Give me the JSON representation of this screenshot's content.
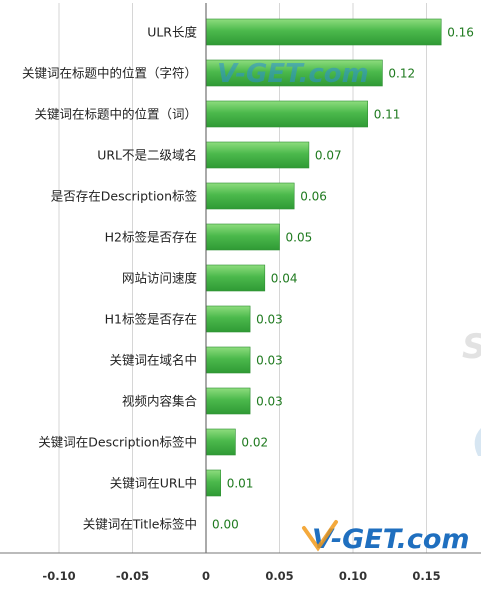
{
  "chart_data": {
    "type": "bar",
    "orientation": "horizontal",
    "categories": [
      "ULR长度",
      "关键词在标题中的位置（字符）",
      "关键词在标题中的位置（词）",
      "URL不是二级域名",
      "是否存在Description标签",
      "H2标签是否存在",
      "网站访问速度",
      "H1标签是否存在",
      "关键词在域名中",
      "视频内容集合",
      "关键词在Description标签中",
      "关键词在URL中",
      "关键词在Title标签中"
    ],
    "values": [
      0.16,
      0.12,
      0.11,
      0.07,
      0.06,
      0.05,
      0.04,
      0.03,
      0.03,
      0.03,
      0.02,
      0.01,
      0.0
    ],
    "value_labels": [
      "0.16",
      "0.12",
      "0.11",
      "0.07",
      "0.06",
      "0.05",
      "0.04",
      "0.03",
      "0.03",
      "0.03",
      "0.02",
      "0.01",
      "0.00"
    ],
    "xticks": [
      -0.1,
      -0.05,
      0,
      0.05,
      0.1,
      0.15
    ],
    "xtick_labels": [
      "-0.10",
      "-0.05",
      "0",
      "0.05",
      "0.10",
      "0.15"
    ],
    "xlim": [
      -0.14,
      0.19
    ],
    "grid": true,
    "bar_color": "#4cb94c",
    "title": "",
    "xlabel": "",
    "ylabel": ""
  },
  "watermark": {
    "text": "V-GET.com"
  }
}
